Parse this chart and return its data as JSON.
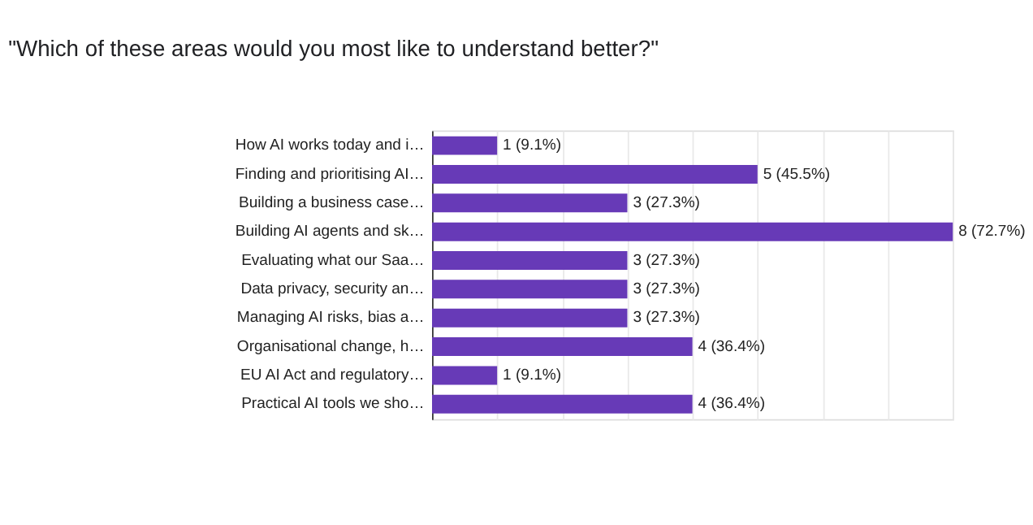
{
  "chart_data": {
    "type": "bar",
    "orientation": "horizontal",
    "title": "\"Which of these areas would you most like to understand better?\"",
    "categories": [
      "How AI works today and i…",
      "Finding and prioritising AI…",
      "Building a business case…",
      "Building AI agents and sk…",
      "Evaluating what our Saa…",
      "Data privacy, security an…",
      "Managing AI risks, bias a…",
      "Organisational change, h…",
      "EU AI Act and regulatory…",
      "Practical AI tools we sho…"
    ],
    "values": [
      1,
      5,
      3,
      8,
      3,
      3,
      3,
      4,
      1,
      4
    ],
    "value_labels": [
      "1 (9.1%)",
      "5 (45.5%)",
      "3 (27.3%)",
      "8 (72.7%)",
      "3 (27.3%)",
      "3 (27.3%)",
      "3 (27.3%)",
      "4 (36.4%)",
      "1 (9.1%)",
      "4 (36.4%)"
    ],
    "color": "#673ab7",
    "xlim": [
      0,
      8
    ],
    "xticks": [
      {
        "value": 0,
        "label": null
      },
      {
        "value": 1,
        "label": null
      },
      {
        "value": 2,
        "label": null
      },
      {
        "value": 3,
        "label": null
      },
      {
        "value": 4,
        "label": null
      },
      {
        "value": 5,
        "label": null
      },
      {
        "value": 6,
        "label": null
      },
      {
        "value": 7,
        "label": null
      },
      {
        "value": 8,
        "label": null
      }
    ],
    "grid": "x",
    "tick_labels": "y"
  }
}
